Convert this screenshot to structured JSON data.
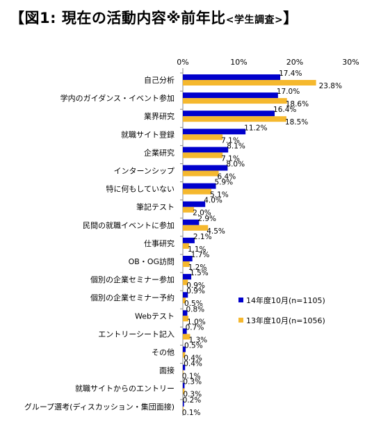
{
  "header": {
    "title": "【図1:  現在の活動内容※前年比",
    "subtitle": "<学生調査>",
    "close_bracket": "】"
  },
  "colors": {
    "series_2014": "#0000cc",
    "series_2013": "#f5b82e"
  },
  "chart_data": {
    "type": "bar",
    "orientation": "horizontal",
    "title": "【図1:  現在の活動内容※前年比<学生調査>】",
    "xlim": [
      0,
      30
    ],
    "x_ticks": [
      "0%",
      "10%",
      "20%",
      "30%"
    ],
    "grid": false,
    "legend_position": "lower-right",
    "categories": [
      "自己分析",
      "学内のガイダンス・イベント参加",
      "業界研究",
      "就職サイト登録",
      "企業研究",
      "インターンシップ",
      "特に何もしていない",
      "筆記テスト",
      "民間の就職イベントに参加",
      "仕事研究",
      "OB・OG訪問",
      "個別の企業セミナー参加",
      "個別の企業セミナー予約",
      "Webテスト",
      "エントリーシート記入",
      "その他",
      "面接",
      "就職サイトからのエントリー",
      "グループ選考(ディスカッション・集団面接)"
    ],
    "series": [
      {
        "name": "14年度10月(n=1105)",
        "values": [
          17.4,
          17.0,
          16.4,
          11.2,
          8.1,
          8.0,
          5.9,
          4.0,
          2.9,
          2.1,
          1.7,
          1.5,
          0.9,
          0.8,
          0.7,
          0.5,
          0.4,
          0.3,
          0.2
        ],
        "labels": [
          "17.4%",
          "17.0%",
          "16.4%",
          "11.2%",
          "8.1%",
          "8.0%",
          "5.9%",
          "4.0%",
          "2.9%",
          "2.1%",
          "1.7%",
          "1.5%",
          "0.9%",
          "0.8%",
          "0.7%",
          "0.5%",
          "0.4%",
          "0.3%",
          "0.2%"
        ]
      },
      {
        "name": "13年度10月(n=1056)",
        "values": [
          23.8,
          18.6,
          18.5,
          7.1,
          7.1,
          6.4,
          5.1,
          2.0,
          4.5,
          1.1,
          1.2,
          0.9,
          0.5,
          1.0,
          1.3,
          0.4,
          0.1,
          0.3,
          0.1
        ],
        "labels": [
          "23.8%",
          "18.6%",
          "18.5%",
          "7.1%",
          "7.1%",
          "6.4%",
          "5.1%",
          "2.0%",
          "4.5%",
          "1.1%",
          "1.2%",
          "0.9%",
          "0.5%",
          "1.0%",
          "1.3%",
          "0.4%",
          "0.1%",
          "0.3%",
          "0.1%"
        ]
      }
    ]
  }
}
